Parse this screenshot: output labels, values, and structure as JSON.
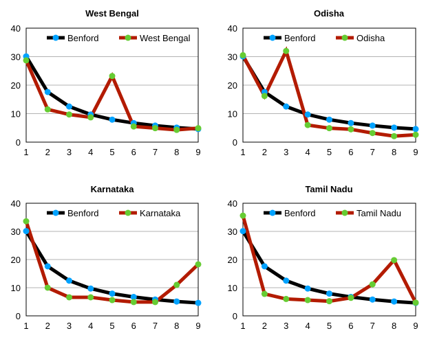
{
  "chart_data": [
    {
      "type": "line",
      "title": "West Bengal",
      "categories": [
        "1",
        "2",
        "3",
        "4",
        "5",
        "6",
        "7",
        "8",
        "9"
      ],
      "xlabel": "",
      "ylabel": "",
      "ylim": [
        0,
        40
      ],
      "yticks": [
        "0",
        "10",
        "20",
        "30",
        "40"
      ],
      "grid": true,
      "legend": "top",
      "series": [
        {
          "name": "Benford",
          "line_color": "#000000",
          "marker_color": "#00a2ff",
          "values": [
            30.1,
            17.6,
            12.5,
            9.7,
            7.9,
            6.7,
            5.8,
            5.1,
            4.6
          ]
        },
        {
          "name": "West Bengal",
          "line_color": "#b31b00",
          "marker_color": "#66cc33",
          "values": [
            28.7,
            11.5,
            9.7,
            8.7,
            23.2,
            5.5,
            4.9,
            4.3,
            4.9
          ]
        }
      ]
    },
    {
      "type": "line",
      "title": "Odisha",
      "categories": [
        "1",
        "2",
        "3",
        "4",
        "5",
        "6",
        "7",
        "8",
        "9"
      ],
      "xlabel": "",
      "ylabel": "",
      "ylim": [
        0,
        40
      ],
      "yticks": [
        "0",
        "10",
        "20",
        "30",
        "40"
      ],
      "grid": true,
      "legend": "top",
      "series": [
        {
          "name": "Benford",
          "line_color": "#000000",
          "marker_color": "#00a2ff",
          "values": [
            30.1,
            17.6,
            12.5,
            9.7,
            7.9,
            6.7,
            5.8,
            5.1,
            4.6
          ]
        },
        {
          "name": "Odisha",
          "line_color": "#b31b00",
          "marker_color": "#66cc33",
          "values": [
            30.5,
            16.2,
            32.0,
            6.0,
            4.9,
            4.5,
            3.2,
            2.1,
            2.6
          ]
        }
      ]
    },
    {
      "type": "line",
      "title": "Karnataka",
      "categories": [
        "1",
        "2",
        "3",
        "4",
        "5",
        "6",
        "7",
        "8",
        "9"
      ],
      "xlabel": "",
      "ylabel": "",
      "ylim": [
        0,
        40
      ],
      "yticks": [
        "0",
        "10",
        "20",
        "30",
        "40"
      ],
      "grid": true,
      "legend": "top",
      "series": [
        {
          "name": "Benford",
          "line_color": "#000000",
          "marker_color": "#00a2ff",
          "values": [
            30.1,
            17.6,
            12.5,
            9.7,
            7.9,
            6.7,
            5.8,
            5.1,
            4.6
          ]
        },
        {
          "name": "Karnataka",
          "line_color": "#b31b00",
          "marker_color": "#66cc33",
          "values": [
            33.6,
            10.0,
            6.6,
            6.6,
            5.6,
            4.9,
            4.9,
            11.0,
            18.3
          ]
        }
      ]
    },
    {
      "type": "line",
      "title": "Tamil Nadu",
      "categories": [
        "1",
        "2",
        "3",
        "4",
        "5",
        "6",
        "7",
        "8",
        "9"
      ],
      "xlabel": "",
      "ylabel": "",
      "ylim": [
        0,
        40
      ],
      "yticks": [
        "0",
        "10",
        "20",
        "30",
        "40"
      ],
      "grid": true,
      "legend": "top",
      "series": [
        {
          "name": "Benford",
          "line_color": "#000000",
          "marker_color": "#00a2ff",
          "values": [
            30.1,
            17.6,
            12.5,
            9.7,
            7.9,
            6.7,
            5.8,
            5.1,
            4.6
          ]
        },
        {
          "name": "Tamil Nadu",
          "line_color": "#b31b00",
          "marker_color": "#66cc33",
          "values": [
            35.6,
            7.8,
            6.0,
            5.6,
            5.2,
            6.4,
            11.2,
            19.8,
            4.7
          ]
        }
      ]
    }
  ]
}
